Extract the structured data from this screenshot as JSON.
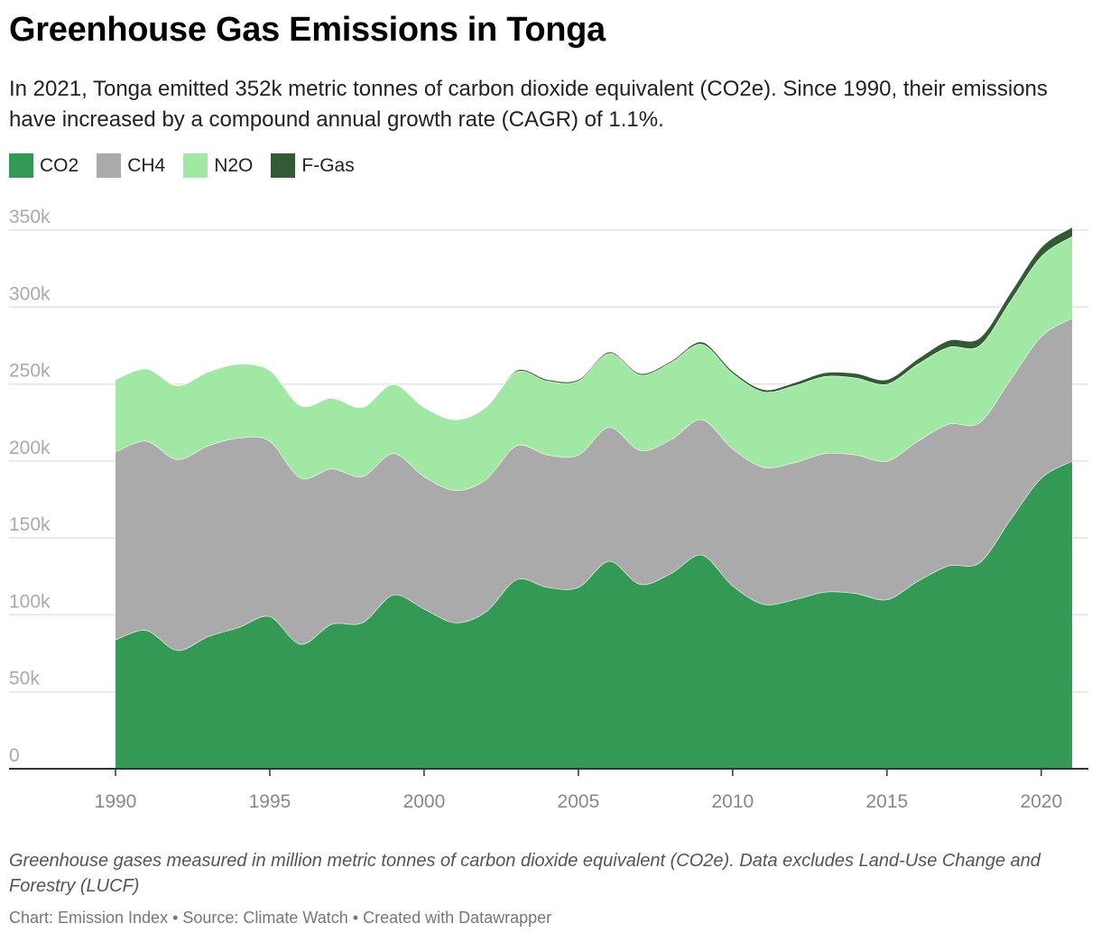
{
  "title": "Greenhouse Gas Emissions in Tonga",
  "subtitle": "In 2021, Tonga emitted 352k metric tonnes of carbon dioxide equivalent (CO2e). Since 1990, their emissions have increased by a compound annual growth rate (CAGR) of 1.1%.",
  "notes": "Greenhouse gases measured in million metric tonnes of carbon dioxide equivalent (CO2e). Data excludes Land-Use Change and Forestry (LUCF)",
  "footer": "Chart: Emission Index • Source: Climate Watch • Created with Datawrapper",
  "legend": [
    {
      "label": "CO2",
      "color": "#339955"
    },
    {
      "label": "CH4",
      "color": "#aaaaaa"
    },
    {
      "label": "N2O",
      "color": "#a0e8a3"
    },
    {
      "label": "F-Gas",
      "color": "#335a33"
    }
  ],
  "chart_data": {
    "type": "area",
    "stacked": true,
    "x": [
      1990,
      1991,
      1992,
      1993,
      1994,
      1995,
      1996,
      1997,
      1998,
      1999,
      2000,
      2001,
      2002,
      2003,
      2004,
      2005,
      2006,
      2007,
      2008,
      2009,
      2010,
      2011,
      2012,
      2013,
      2014,
      2015,
      2016,
      2017,
      2018,
      2019,
      2020,
      2021
    ],
    "series": [
      {
        "name": "CO2",
        "color": "#339955",
        "values": [
          84000,
          90000,
          77000,
          86000,
          92000,
          99000,
          81000,
          94000,
          95000,
          113000,
          104000,
          95000,
          102000,
          123000,
          118000,
          118000,
          135000,
          120000,
          127000,
          139000,
          119000,
          107000,
          110000,
          115000,
          114000,
          110000,
          122000,
          132000,
          134000,
          162000,
          189000,
          200000
        ]
      },
      {
        "name": "CH4",
        "color": "#aaaaaa",
        "values": [
          122000,
          123000,
          124000,
          124000,
          123000,
          114000,
          108000,
          101000,
          95000,
          92000,
          86000,
          86000,
          86000,
          87000,
          86000,
          86000,
          87000,
          87000,
          87000,
          88000,
          89000,
          89000,
          89000,
          90000,
          90000,
          90000,
          91000,
          92000,
          91000,
          91000,
          92000,
          93000
        ]
      },
      {
        "name": "N2O",
        "color": "#a0e8a3",
        "values": [
          47000,
          47000,
          48000,
          48000,
          48000,
          46000,
          47000,
          46000,
          45000,
          45000,
          45000,
          46000,
          47000,
          48000,
          48000,
          48000,
          48000,
          49000,
          50000,
          49000,
          49000,
          49000,
          50000,
          50000,
          50000,
          50000,
          50000,
          50000,
          50000,
          51000,
          52000,
          53000
        ]
      },
      {
        "name": "F-Gas",
        "color": "#335a33",
        "values": [
          0,
          0,
          0,
          0,
          0,
          0,
          0,
          0,
          0,
          0,
          0,
          0,
          0,
          1000,
          1000,
          1000,
          1000,
          1000,
          1000,
          1500,
          1500,
          1500,
          2000,
          2500,
          3000,
          3000,
          3500,
          4500,
          5000,
          5500,
          6000,
          6000
        ]
      }
    ],
    "ylim": [
      0,
      350000
    ],
    "y_ticks": [
      0,
      50000,
      100000,
      150000,
      200000,
      250000,
      300000,
      350000
    ],
    "y_tick_labels": [
      "0",
      "50k",
      "100k",
      "150k",
      "200k",
      "250k",
      "300k",
      "350k"
    ],
    "x_ticks": [
      1990,
      1995,
      2000,
      2005,
      2010,
      2015,
      2020
    ],
    "x_tick_labels": [
      "1990",
      "1995",
      "2000",
      "2005",
      "2010",
      "2015",
      "2020"
    ],
    "grid": true,
    "legend_position": "top-left"
  }
}
